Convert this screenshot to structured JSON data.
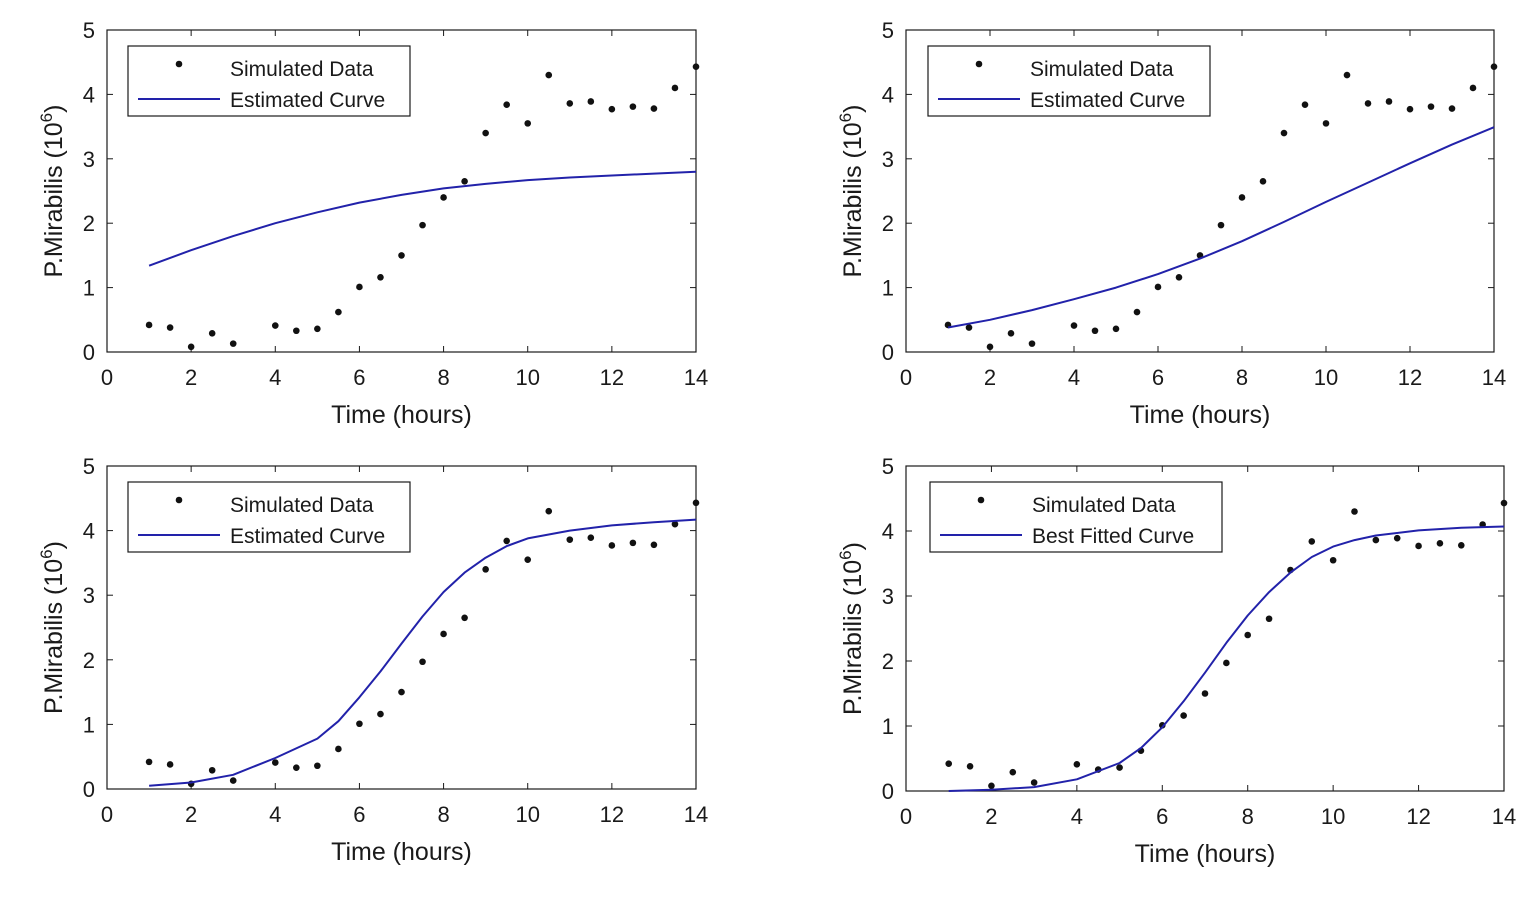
{
  "colors": {
    "curve": "#2222aa",
    "points": "#111111",
    "axes": "#1a1a1a",
    "background": "#ffffff"
  },
  "chart_data": [
    {
      "type": "line",
      "xlabel": "Time (hours)",
      "ylabel": "P.Mirabilis (10",
      "ylabel_sup": "6",
      "ylabel_close": ")",
      "xlim": [
        0,
        14
      ],
      "ylim": [
        0,
        5
      ],
      "xticks": [
        "0",
        "2",
        "4",
        "6",
        "8",
        "10",
        "12",
        "14"
      ],
      "yticks": [
        "0",
        "1",
        "2",
        "3",
        "4",
        "5"
      ],
      "grid": false,
      "legend_position": "top-left",
      "series": [
        {
          "name": "Simulated Data",
          "style": "markers",
          "x": [
            1,
            1.5,
            2,
            2.5,
            3,
            4,
            4.5,
            5,
            5.5,
            6,
            6.5,
            7,
            7.5,
            8,
            8.5,
            9,
            9.5,
            10,
            10.5,
            11,
            11.5,
            12,
            12.5,
            13,
            13.5,
            14
          ],
          "y": [
            0.42,
            0.38,
            0.08,
            0.29,
            0.13,
            0.41,
            0.33,
            0.36,
            0.62,
            1.01,
            1.16,
            1.5,
            1.97,
            2.4,
            2.65,
            3.4,
            3.84,
            3.55,
            4.3,
            3.86,
            3.89,
            3.77,
            3.81,
            3.78,
            4.1,
            4.43
          ]
        },
        {
          "name": "Estimated Curve",
          "style": "line",
          "x": [
            1,
            2,
            3,
            4,
            5,
            6,
            7,
            8,
            9,
            10,
            11,
            12,
            13,
            14
          ],
          "y": [
            1.34,
            1.58,
            1.8,
            2.0,
            2.17,
            2.32,
            2.44,
            2.54,
            2.61,
            2.67,
            2.71,
            2.74,
            2.77,
            2.8
          ]
        }
      ]
    },
    {
      "type": "line",
      "xlabel": "Time (hours)",
      "ylabel": "P.Mirabilis (10",
      "ylabel_sup": "6",
      "ylabel_close": ")",
      "xlim": [
        0,
        14
      ],
      "ylim": [
        0,
        5
      ],
      "xticks": [
        "0",
        "2",
        "4",
        "6",
        "8",
        "10",
        "12",
        "14"
      ],
      "yticks": [
        "0",
        "1",
        "2",
        "3",
        "4",
        "5"
      ],
      "grid": false,
      "legend_position": "top-left",
      "series": [
        {
          "name": "Simulated Data",
          "style": "markers",
          "x": [
            1,
            1.5,
            2,
            2.5,
            3,
            4,
            4.5,
            5,
            5.5,
            6,
            6.5,
            7,
            7.5,
            8,
            8.5,
            9,
            9.5,
            10,
            10.5,
            11,
            11.5,
            12,
            12.5,
            13,
            13.5,
            14
          ],
          "y": [
            0.42,
            0.38,
            0.08,
            0.29,
            0.13,
            0.41,
            0.33,
            0.36,
            0.62,
            1.01,
            1.16,
            1.5,
            1.97,
            2.4,
            2.65,
            3.4,
            3.84,
            3.55,
            4.3,
            3.86,
            3.89,
            3.77,
            3.81,
            3.78,
            4.1,
            4.43
          ]
        },
        {
          "name": "Estimated Curve",
          "style": "line",
          "x": [
            1,
            2,
            3,
            4,
            5,
            6,
            7,
            8,
            9,
            10,
            11,
            12,
            13,
            14
          ],
          "y": [
            0.38,
            0.5,
            0.65,
            0.82,
            1.0,
            1.21,
            1.45,
            1.72,
            2.02,
            2.33,
            2.63,
            2.93,
            3.22,
            3.49
          ]
        }
      ]
    },
    {
      "type": "line",
      "xlabel": "Time (hours)",
      "ylabel": "P.Mirabilis (10",
      "ylabel_sup": "6",
      "ylabel_close": ")",
      "xlim": [
        0,
        14
      ],
      "ylim": [
        0,
        5
      ],
      "xticks": [
        "0",
        "2",
        "4",
        "6",
        "8",
        "10",
        "12",
        "14"
      ],
      "yticks": [
        "0",
        "1",
        "2",
        "3",
        "4",
        "5"
      ],
      "grid": false,
      "legend_position": "top-left",
      "series": [
        {
          "name": "Simulated Data",
          "style": "markers",
          "x": [
            1,
            1.5,
            2,
            2.5,
            3,
            4,
            4.5,
            5,
            5.5,
            6,
            6.5,
            7,
            7.5,
            8,
            8.5,
            9,
            9.5,
            10,
            10.5,
            11,
            11.5,
            12,
            12.5,
            13,
            13.5,
            14
          ],
          "y": [
            0.42,
            0.38,
            0.08,
            0.29,
            0.13,
            0.41,
            0.33,
            0.36,
            0.62,
            1.01,
            1.16,
            1.5,
            1.97,
            2.4,
            2.65,
            3.4,
            3.84,
            3.55,
            4.3,
            3.86,
            3.89,
            3.77,
            3.81,
            3.78,
            4.1,
            4.43
          ]
        },
        {
          "name": "Estimated Curve",
          "style": "line",
          "x": [
            1,
            2,
            3,
            4,
            5,
            5.5,
            6,
            6.5,
            7,
            7.5,
            8,
            8.5,
            9,
            9.5,
            10,
            11,
            12,
            13,
            14
          ],
          "y": [
            0.05,
            0.1,
            0.22,
            0.48,
            0.78,
            1.05,
            1.42,
            1.82,
            2.25,
            2.67,
            3.05,
            3.35,
            3.58,
            3.76,
            3.88,
            4.0,
            4.08,
            4.13,
            4.17
          ]
        }
      ]
    },
    {
      "type": "line",
      "xlabel": "Time (hours)",
      "ylabel": "P.Mirabilis (10",
      "ylabel_sup": "6",
      "ylabel_close": ")",
      "xlim": [
        0,
        14
      ],
      "ylim": [
        0,
        5
      ],
      "xticks": [
        "0",
        "2",
        "4",
        "6",
        "8",
        "10",
        "12",
        "14"
      ],
      "yticks": [
        "0",
        "1",
        "2",
        "3",
        "4",
        "5"
      ],
      "grid": false,
      "legend_position": "top-left",
      "series": [
        {
          "name": "Simulated Data",
          "style": "markers",
          "x": [
            1,
            1.5,
            2,
            2.5,
            3,
            4,
            4.5,
            5,
            5.5,
            6,
            6.5,
            7,
            7.5,
            8,
            8.5,
            9,
            9.5,
            10,
            10.5,
            11,
            11.5,
            12,
            12.5,
            13,
            13.5,
            14
          ],
          "y": [
            0.42,
            0.38,
            0.08,
            0.29,
            0.13,
            0.41,
            0.33,
            0.36,
            0.62,
            1.01,
            1.16,
            1.5,
            1.97,
            2.4,
            2.65,
            3.4,
            3.84,
            3.55,
            4.3,
            3.86,
            3.89,
            3.77,
            3.81,
            3.78,
            4.1,
            4.43
          ]
        },
        {
          "name": "Best Fitted Curve",
          "style": "line",
          "x": [
            1,
            2,
            3,
            4,
            5,
            5.5,
            6,
            6.5,
            7,
            7.5,
            8,
            8.5,
            9,
            9.5,
            10,
            10.5,
            11,
            12,
            13,
            14
          ],
          "y": [
            0.0,
            0.02,
            0.06,
            0.18,
            0.43,
            0.66,
            0.98,
            1.38,
            1.82,
            2.28,
            2.7,
            3.06,
            3.36,
            3.6,
            3.76,
            3.86,
            3.93,
            4.01,
            4.05,
            4.07
          ]
        }
      ]
    }
  ]
}
